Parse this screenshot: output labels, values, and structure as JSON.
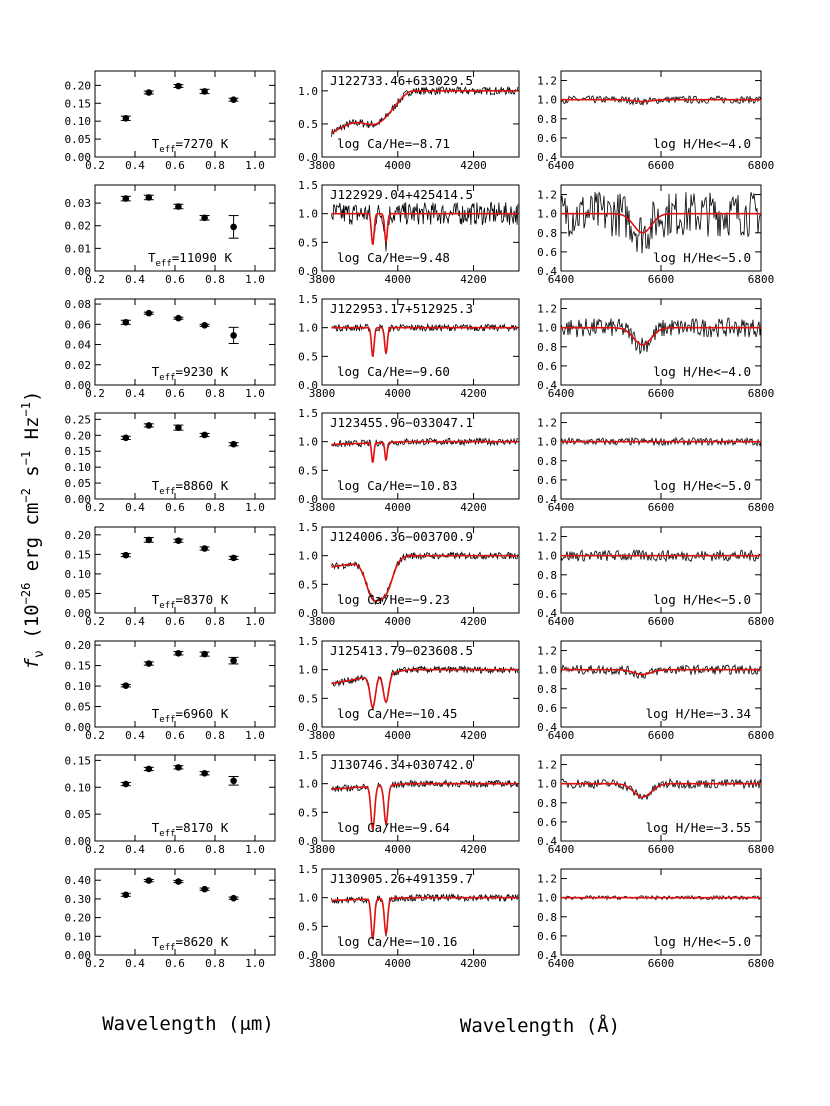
{
  "figure": {
    "ylabel_main": "f",
    "ylabel_sub": "ν",
    "ylabel_rest": " (10",
    "ylabel_exp1": "−26",
    "ylabel_mid1": " erg cm",
    "ylabel_exp2": "−2",
    "ylabel_mid2": " s",
    "ylabel_exp3": "−1",
    "ylabel_mid3": " Hz",
    "ylabel_exp4": "−1",
    "ylabel_end": ")",
    "xlabel_left": "Wavelength (μm)",
    "xlabel_right": "Wavelength (Å)"
  },
  "chart_data": {
    "type": "scatter",
    "photometry_x": [
      0.354,
      0.469,
      0.617,
      0.748,
      0.893
    ],
    "photometry_xlim": [
      0.2,
      1.1
    ],
    "photometry_xticks": [
      "0.2",
      "0.4",
      "0.6",
      "0.8",
      "1.0"
    ],
    "caK_xlim": [
      3800,
      4320
    ],
    "caK_xticks": [
      "3800",
      "4000",
      "4200"
    ],
    "caK_yticks": [
      "0.0",
      "0.5",
      "1.0",
      "1.5"
    ],
    "halpha_xlim": [
      6400,
      6800
    ],
    "halpha_xticks": [
      "6400",
      "6600",
      "6800"
    ],
    "halpha_ylim": [
      0.4,
      1.3
    ],
    "halpha_yticks": [
      "0.4",
      "0.6",
      "0.8",
      "1.0",
      "1.2"
    ],
    "stars": [
      {
        "name": "J122733.46+633029.5",
        "teff": "T",
        "teff_sub": "eff",
        "teff_val": "=7270 K",
        "flux": [
          0.108,
          0.18,
          0.198,
          0.183,
          0.16
        ],
        "err": [
          0.006,
          0.004,
          0.004,
          0.006,
          0.004
        ],
        "ylim": [
          0,
          0.24
        ],
        "yticks": [
          0,
          0.05,
          0.1,
          0.15,
          0.2
        ],
        "ytick_labels": [
          "0.00",
          "0.05",
          "0.10",
          "0.15",
          "0.20"
        ],
        "ca_label": "log Ca/He=−8.71",
        "h_label": "log H/He<−4.0",
        "caK_ylim": [
          0,
          1.3
        ],
        "caK_yticks": [
          0,
          0.5,
          1.0
        ],
        "caK_ytick_labels": [
          "0.0",
          "0.5",
          "1.0"
        ],
        "ca_depth": 0.15,
        "ca_width": 40,
        "slope_start": 0.35,
        "h_depth": 0.02,
        "h_noise": 0.02
      },
      {
        "name": "J122929.04+425414.5",
        "teff": "T",
        "teff_sub": "eff",
        "teff_val": "=11090 K",
        "flux": [
          0.032,
          0.0325,
          0.0285,
          0.0235,
          0.0195
        ],
        "err": [
          0.001,
          0.001,
          0.001,
          0.001,
          0.005
        ],
        "ylim": [
          0,
          0.038
        ],
        "yticks": [
          0,
          0.01,
          0.02,
          0.03
        ],
        "ytick_labels": [
          "0.00",
          "0.01",
          "0.02",
          "0.03"
        ],
        "ca_label": "log Ca/He=−9.48",
        "h_label": "log H/He<−5.0",
        "caK_ylim": [
          0,
          1.5
        ],
        "caK_yticks": [
          0,
          0.5,
          1.0,
          1.5
        ],
        "caK_ytick_labels": [
          "0.0",
          "0.5",
          "1.0",
          "1.5"
        ],
        "ca_depth": 0.55,
        "ca_width": 5,
        "slope_start": 1.0,
        "h_depth": 0.2,
        "h_noise": 0.12
      },
      {
        "name": "J122953.17+512925.3",
        "teff": "T",
        "teff_sub": "eff",
        "teff_val": "=9230 K",
        "flux": [
          0.062,
          0.071,
          0.066,
          0.059,
          0.049
        ],
        "err": [
          0.002,
          0.001,
          0.001,
          0.001,
          0.008
        ],
        "ylim": [
          0,
          0.085
        ],
        "yticks": [
          0,
          0.02,
          0.04,
          0.06,
          0.08
        ],
        "ytick_labels": [
          "0.00",
          "0.02",
          "0.04",
          "0.06",
          "0.08"
        ],
        "ca_label": "log Ca/He=−9.60",
        "h_label": "log H/He<−4.0",
        "caK_ylim": [
          0,
          1.5
        ],
        "caK_yticks": [
          0,
          0.5,
          1.0,
          1.5
        ],
        "caK_ytick_labels": [
          "0.0",
          "0.5",
          "1.0",
          "1.5"
        ],
        "ca_depth": 0.5,
        "ca_width": 5,
        "slope_start": 1.0,
        "h_depth": 0.18,
        "h_noise": 0.05
      },
      {
        "name": "J123455.96−033047.1",
        "teff": "T",
        "teff_sub": "eff",
        "teff_val": "=8860 K",
        "flux": [
          0.192,
          0.231,
          0.224,
          0.201,
          0.172
        ],
        "err": [
          0.005,
          0.005,
          0.008,
          0.005,
          0.005
        ],
        "ylim": [
          0,
          0.27
        ],
        "yticks": [
          0,
          0.05,
          0.1,
          0.15,
          0.2,
          0.25
        ],
        "ytick_labels": [
          "0.00",
          "0.05",
          "0.10",
          "0.15",
          "0.20",
          "0.25"
        ],
        "ca_label": "log Ca/He=−10.83",
        "h_label": "log H/He<−5.0",
        "caK_ylim": [
          0,
          1.5
        ],
        "caK_yticks": [
          0,
          0.5,
          1.0,
          1.5
        ],
        "caK_ytick_labels": [
          "0.0",
          "0.5",
          "1.0",
          "1.5"
        ],
        "ca_depth": 0.35,
        "ca_width": 4,
        "slope_start": 0.95,
        "h_depth": 0.0,
        "h_noise": 0.02
      },
      {
        "name": "J124006.36−003700.9",
        "teff": "T",
        "teff_sub": "eff",
        "teff_val": "=8370 K",
        "flux": [
          0.148,
          0.187,
          0.185,
          0.165,
          0.141
        ],
        "err": [
          0.004,
          0.006,
          0.004,
          0.004,
          0.004
        ],
        "ylim": [
          0,
          0.22
        ],
        "yticks": [
          0,
          0.05,
          0.1,
          0.15,
          0.2
        ],
        "ytick_labels": [
          "0.00",
          "0.05",
          "0.10",
          "0.15",
          "0.20"
        ],
        "ca_label": "log Ca/He=−9.23",
        "h_label": "log H/He<−5.0",
        "caK_ylim": [
          0,
          1.5
        ],
        "caK_yticks": [
          0,
          0.5,
          1.0,
          1.5
        ],
        "caK_ytick_labels": [
          "0.0",
          "0.5",
          "1.0",
          "1.5"
        ],
        "ca_depth": 0.6,
        "ca_width": 25,
        "slope_start": 0.8,
        "h_depth": 0.0,
        "h_noise": 0.03
      },
      {
        "name": "J125413.79−023608.5",
        "teff": "T",
        "teff_sub": "eff",
        "teff_val": "=6960 K",
        "flux": [
          0.101,
          0.155,
          0.18,
          0.178,
          0.162
        ],
        "err": [
          0.003,
          0.004,
          0.004,
          0.005,
          0.008
        ],
        "ylim": [
          0,
          0.21
        ],
        "yticks": [
          0,
          0.05,
          0.1,
          0.15,
          0.2
        ],
        "ytick_labels": [
          "0.00",
          "0.05",
          "0.10",
          "0.15",
          "0.20"
        ],
        "ca_label": "log Ca/He=−10.45",
        "h_label": "log H/He=−3.34",
        "caK_ylim": [
          0,
          1.5
        ],
        "caK_yticks": [
          0,
          0.5,
          1.0,
          1.5
        ],
        "caK_ytick_labels": [
          "0.0",
          "0.5",
          "1.0",
          "1.5"
        ],
        "ca_depth": 0.55,
        "ca_width": 10,
        "slope_start": 0.75,
        "h_depth": 0.05,
        "h_noise": 0.025
      },
      {
        "name": "J130746.34+030742.0",
        "teff": "T",
        "teff_sub": "eff",
        "teff_val": "=8170 K",
        "flux": [
          0.106,
          0.134,
          0.137,
          0.126,
          0.112
        ],
        "err": [
          0.003,
          0.003,
          0.003,
          0.003,
          0.008
        ],
        "ylim": [
          0,
          0.16
        ],
        "yticks": [
          0,
          0.05,
          0.1,
          0.15
        ],
        "ytick_labels": [
          "0.00",
          "0.05",
          "0.10",
          "0.15"
        ],
        "ca_label": "log Ca/He=−9.64",
        "h_label": "log H/He=−3.55",
        "caK_ylim": [
          0,
          1.5
        ],
        "caK_yticks": [
          0,
          0.5,
          1.0,
          1.5
        ],
        "caK_ytick_labels": [
          "0.0",
          "0.5",
          "1.0",
          "1.5"
        ],
        "ca_depth": 0.75,
        "ca_width": 7,
        "slope_start": 0.9,
        "h_depth": 0.14,
        "h_noise": 0.025
      },
      {
        "name": "J130905.26+491359.7",
        "teff": "T",
        "teff_sub": "eff",
        "teff_val": "=8620 K",
        "flux": [
          0.322,
          0.398,
          0.393,
          0.352,
          0.304
        ],
        "err": [
          0.008,
          0.006,
          0.006,
          0.006,
          0.006
        ],
        "ylim": [
          0,
          0.46
        ],
        "yticks": [
          0,
          0.1,
          0.2,
          0.3,
          0.4
        ],
        "ytick_labels": [
          "0.00",
          "0.10",
          "0.20",
          "0.30",
          "0.40"
        ],
        "ca_label": "log Ca/He=−10.16",
        "h_label": "log H/He<−5.0",
        "caK_ylim": [
          0,
          1.5
        ],
        "caK_yticks": [
          0,
          0.5,
          1.0,
          1.5
        ],
        "caK_ytick_labels": [
          "0.0",
          "0.5",
          "1.0",
          "1.5"
        ],
        "ca_depth": 0.7,
        "ca_width": 6,
        "slope_start": 0.95,
        "h_depth": 0.0,
        "h_noise": 0.01
      }
    ]
  }
}
